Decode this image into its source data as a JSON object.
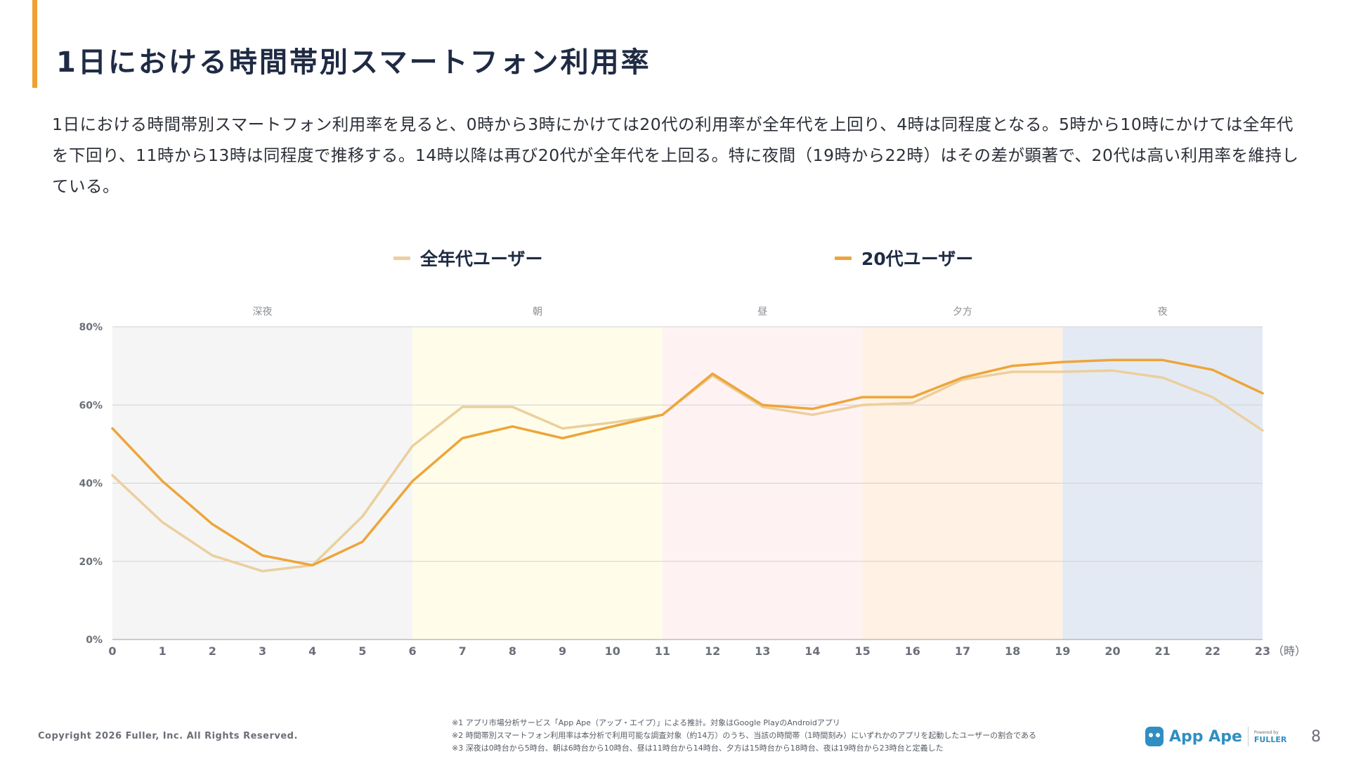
{
  "title": "1日における時間帯別スマートフォン利用率",
  "description": "1日における時間帯別スマートフォン利用率を見ると、0時から3時にかけては20代の利用率が全年代を上回り、4時は同程度となる。5時から10時にかけては全年代を下回り、11時から13時は同程度で推移する。14時以降は再び20代が全年代を上回る。特に夜間（19時から22時）はその差が顕著で、20代は高い利用率を維持している。",
  "chart_data": {
    "type": "line",
    "x": [
      0,
      1,
      2,
      3,
      4,
      5,
      6,
      7,
      8,
      9,
      10,
      11,
      12,
      13,
      14,
      15,
      16,
      17,
      18,
      19,
      20,
      21,
      22,
      23
    ],
    "x_unit": "（時）",
    "ylim": [
      0,
      80
    ],
    "yticks": [
      "0%",
      "20%",
      "40%",
      "60%",
      "80%"
    ],
    "grid": true,
    "legend_placement": "top",
    "series": [
      {
        "name": "全年代ユーザー",
        "color": "#ebcf9d",
        "values": [
          42,
          30,
          21.5,
          17.5,
          19,
          31.5,
          49.5,
          59.5,
          59.5,
          54,
          55.5,
          57.5,
          67.5,
          59.5,
          57.5,
          60,
          60.5,
          66.5,
          68.5,
          68.5,
          68.8,
          67,
          62,
          53.5
        ]
      },
      {
        "name": "20代ユーザー",
        "color": "#eda53a",
        "values": [
          54,
          40.5,
          29.5,
          21.5,
          19,
          25,
          40.5,
          51.5,
          54.5,
          51.5,
          54.5,
          57.5,
          68,
          60,
          59,
          62,
          62,
          67,
          70,
          71,
          71.5,
          71.5,
          69,
          63
        ]
      }
    ],
    "bands": [
      {
        "label": "深夜",
        "from": 0,
        "to": 6,
        "color": "#f5f5f5"
      },
      {
        "label": "朝",
        "from": 6,
        "to": 11,
        "color": "#fffdea"
      },
      {
        "label": "昼",
        "from": 11,
        "to": 15,
        "color": "#fff2f2"
      },
      {
        "label": "夕方",
        "from": 15,
        "to": 19,
        "color": "#fff1e3"
      },
      {
        "label": "夜",
        "from": 19,
        "to": 23,
        "color": "#e4eaf4"
      }
    ]
  },
  "footer": {
    "copyright": "Copyright 2026 Fuller, Inc. All Rights Reserved.",
    "notes": [
      "※1 アプリ市場分析サービス「App Ape（アップ・エイプ）」による推計。対象はGoogle PlayのAndroidアプリ",
      "※2 時間帯別スマートフォン利用率は本分析で利用可能な調査対象（約14万）のうち、当該の時間帯（1時間刻み）にいずれかのアプリを起動したユーザーの割合である",
      "※3 深夜は0時台から5時台、朝は6時台から10時台、昼は11時台から14時台、夕方は15時台から18時台、夜は19時台から23時台と定義した"
    ],
    "logo_text": "App Ape",
    "powered_by": "Powered by",
    "powered_brand": "FULLER",
    "page_number": "8",
    "logo_icon": "app-ape-monkey-icon",
    "accent_color": "#f0a030"
  }
}
